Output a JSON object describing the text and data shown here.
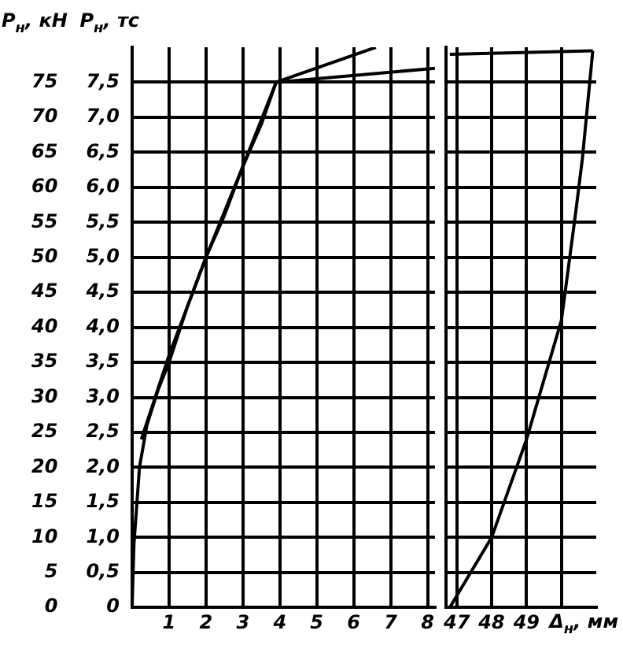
{
  "chart_data": [
    {
      "type": "line",
      "ylabel": "P$_{н}$, тс",
      "y2label": "P$_{н}$, кН",
      "xlim": [
        0,
        8.2
      ],
      "xticks": [
        {
          "value": 0,
          "label": null
        },
        1,
        2,
        3,
        4,
        5,
        6,
        7,
        8
      ],
      "ylim": [
        0,
        8
      ],
      "yticks": [
        0,
        {
          "value": 0.5,
          "label": "0,5"
        },
        {
          "value": 1,
          "label": "1,0"
        },
        {
          "value": 1.5,
          "label": "1,5"
        },
        {
          "value": 2,
          "label": "2,0"
        },
        {
          "value": 2.5,
          "label": "2,5"
        },
        {
          "value": 3,
          "label": "3,0"
        },
        {
          "value": 3.5,
          "label": "3,5"
        },
        {
          "value": 4,
          "label": "4,0"
        },
        {
          "value": 4.5,
          "label": "4,5"
        },
        {
          "value": 5,
          "label": "5,0"
        },
        {
          "value": 5.5,
          "label": "5,5"
        },
        {
          "value": 6,
          "label": "6,0"
        },
        {
          "value": 6.5,
          "label": "6,5"
        },
        {
          "value": 7,
          "label": "7,0"
        },
        {
          "value": 7.5,
          "label": "7,5"
        }
      ],
      "y2lim": [
        0,
        80
      ],
      "y2ticks": [
        0,
        5,
        10,
        15,
        20,
        25,
        30,
        35,
        40,
        45,
        50,
        55,
        60,
        65,
        70,
        75
      ],
      "grid": true,
      "legend": false,
      "marker": "none",
      "line_style": "solid",
      "series": [
        {
          "color": "#000000",
          "x": [
            0,
            0.05,
            0.2,
            0.4,
            0.7,
            1,
            1.5,
            2,
            2.5,
            3,
            3.5,
            3.9
          ],
          "values": [
            0,
            0.9,
            2.0,
            2.6,
            3.1,
            3.5,
            4.3,
            5.0,
            5.6,
            6.3,
            6.9,
            7.5
          ]
        },
        {
          "color": "#000000",
          "x": [
            0.25,
            1,
            2,
            3,
            3.9
          ],
          "values": [
            2.4,
            3.6,
            5.0,
            6.3,
            7.5
          ]
        },
        {
          "color": "#000000",
          "x": [
            3.9,
            6.6
          ],
          "values": [
            7.5,
            8.0
          ]
        },
        {
          "color": "#000000",
          "x": [
            3.9,
            8.2
          ],
          "values": [
            7.5,
            7.7
          ]
        }
      ]
    },
    {
      "type": "line",
      "xlabel": "Δ$_{н}$, мм",
      "tick_labels": "x",
      "xlim": [
        46.7,
        51
      ],
      "xticks": [
        47,
        48,
        49,
        {
          "value": 50,
          "label": null
        }
      ],
      "ylim": [
        0,
        8
      ],
      "yticks": [
        0,
        0.5,
        1,
        1.5,
        2,
        2.5,
        3,
        3.5,
        4,
        4.5,
        5,
        5.5,
        6,
        6.5,
        7,
        7.5
      ],
      "grid": true,
      "legend": false,
      "marker": "none",
      "line_style": "solid",
      "series": [
        {
          "color": "#000000",
          "x": [
            46.8,
            48,
            49,
            50,
            50.4,
            50.6,
            50.9
          ],
          "values": [
            0,
            1.0,
            2.4,
            4.1,
            5.6,
            6.4,
            7.95
          ]
        },
        {
          "color": "#000000",
          "x": [
            46.8,
            50.9
          ],
          "values": [
            7.9,
            7.95
          ]
        }
      ]
    }
  ]
}
